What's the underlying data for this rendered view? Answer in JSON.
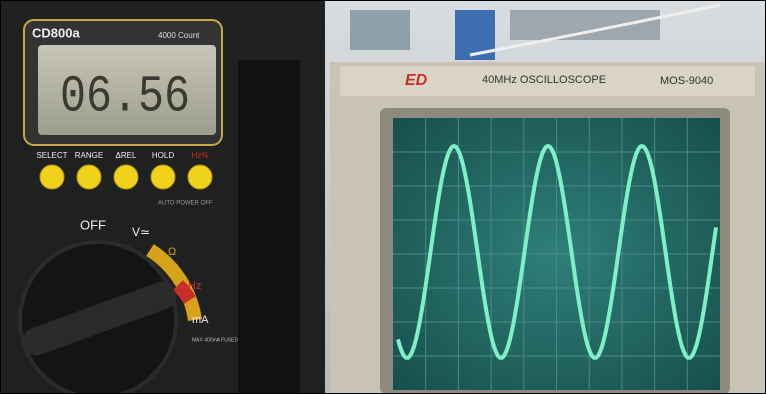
{
  "multimeter": {
    "model": "CD800a",
    "count": "4000 Count",
    "display": "06.56",
    "buttons": [
      "SELECT",
      "RANGE",
      "ΔREL",
      "HOLD",
      "Hz%"
    ],
    "auto_power_off": "AUTO POWER OFF",
    "dial": {
      "off": "OFF",
      "volt": "V≃",
      "ohm": "Ω",
      "hz": "Hz",
      "ma": "mA",
      "fuse": "MAX 400mA FUSED"
    }
  },
  "oscilloscope": {
    "logo": "ED",
    "title": "40MHz OSCILLOSCOPE",
    "model": "MOS-9040"
  }
}
